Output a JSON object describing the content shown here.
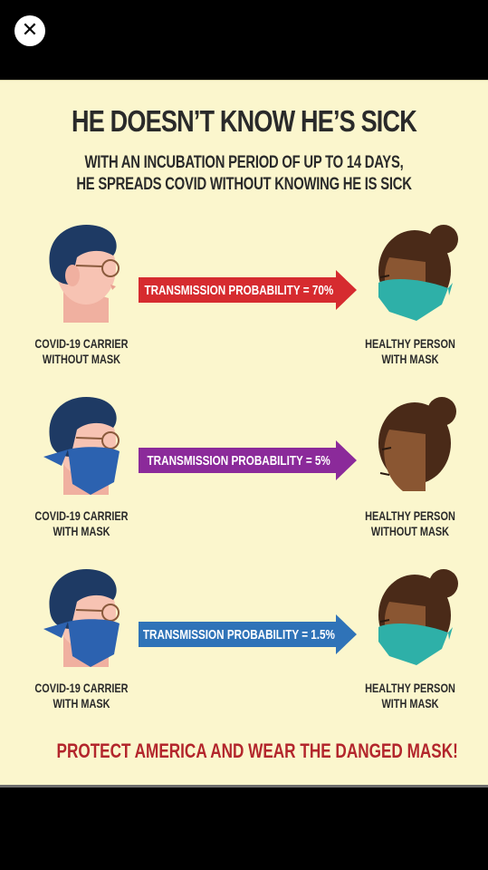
{
  "viewer": {
    "close_icon": "close-icon"
  },
  "poster": {
    "title": "HE DOESN’T KNOW HE’S SICK",
    "subtitle_line1": "WITH AN INCUBATION PERIOD OF UP TO 14 DAYS,",
    "subtitle_line2": "HE SPREADS COVID WITHOUT KNOWING HE IS SICK",
    "scenarios": [
      {
        "carrier_line1": "COVID-19 CARRIER",
        "carrier_line2": "WITHOUT MASK",
        "arrow_label": "TRANSMISSION PROBABILITY = 70%",
        "arrow_color": "#d62b2f",
        "person_line1": "HEALTHY PERSON",
        "person_line2": "WITH MASK"
      },
      {
        "carrier_line1": "COVID-19 CARRIER",
        "carrier_line2": "WITH MASK",
        "arrow_label": "TRANSMISSION PROBABILITY = 5%",
        "arrow_color": "#8b2a9a",
        "person_line1": "HEALTHY PERSON",
        "person_line2": "WITHOUT MASK"
      },
      {
        "carrier_line1": "COVID-19 CARRIER",
        "carrier_line2": "WITH MASK",
        "arrow_label": "TRANSMISSION PROBABILITY = 1.5%",
        "arrow_color": "#2f73b8",
        "person_line1": "HEALTHY PERSON",
        "person_line2": "WITH MASK"
      }
    ],
    "call_to_action": "PROTECT AMERICA AND WEAR THE DANGED MASK!"
  }
}
